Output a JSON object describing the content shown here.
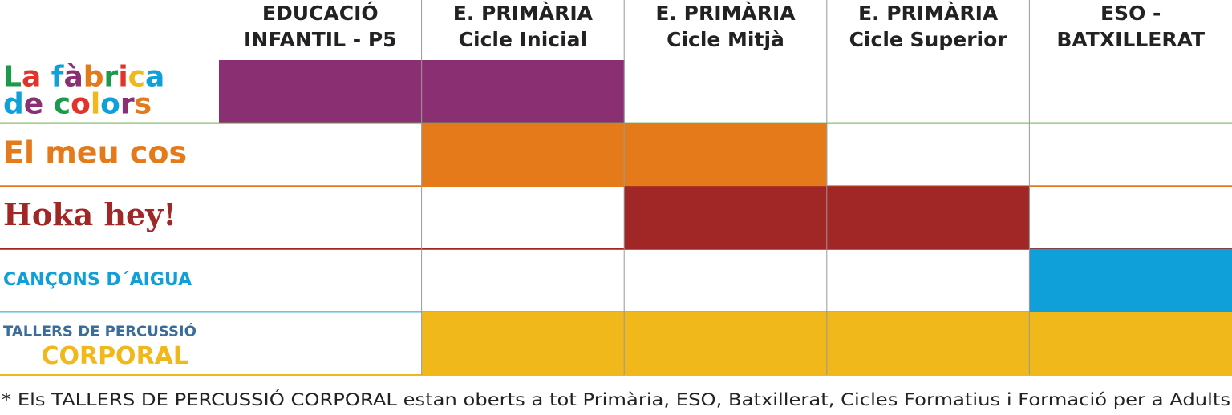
{
  "header": {
    "columns": [
      [
        "EDUCACIÓ",
        "INFANTIL - P5"
      ],
      [
        "E. PRIMÀRIA",
        "Cicle Inicial"
      ],
      [
        "E. PRIMÀRIA",
        "Cicle Mitjà"
      ],
      [
        "E. PRIMÀRIA",
        "Cicle Superior"
      ],
      [
        "ESO -",
        "BATXILLERAT"
      ]
    ]
  },
  "rows": [
    {
      "label": [
        "La fàbrica",
        "de colors"
      ],
      "label_colors": [
        "#1a9a4a",
        "#e2322a",
        "#f0b81b",
        "#0fa0d9",
        "#8b2f73",
        "#e57a1b"
      ],
      "color": "#8b2f73",
      "line": "#6cb33f",
      "filled": [
        true,
        true,
        false,
        false,
        false
      ]
    },
    {
      "label": [
        "El meu cos"
      ],
      "label_colors": [
        "#e57a1b"
      ],
      "color": "#e57a1b",
      "line": "#e57a1b",
      "filled": [
        false,
        true,
        true,
        false,
        false
      ]
    },
    {
      "label": [
        "Hoka hey!"
      ],
      "label_colors": [
        "#a12726"
      ],
      "color": "#a12726",
      "line": "#a12726",
      "filled": [
        false,
        false,
        true,
        true,
        false
      ]
    },
    {
      "label": [
        "CANÇONS D´AIGUA"
      ],
      "label_colors": [
        "#0fa0d9"
      ],
      "color": "#0fa0d9",
      "line": "#0fa0d9",
      "filled": [
        false,
        false,
        false,
        false,
        true
      ]
    },
    {
      "label": [
        "TALLERS DE PERCUSSIÓ",
        "CORPORAL"
      ],
      "label_colors": [
        "#3a6d9a",
        "#f0b81b"
      ],
      "color": "#f0b81b",
      "line": "#f0b81b",
      "filled": [
        false,
        true,
        true,
        true,
        true
      ]
    }
  ],
  "footnote": "* Els TALLERS DE PERCUSSIÓ CORPORAL estan oberts a tot Primària, ESO, Batxillerat, Cicles Formatius i Formació per a Adults"
}
